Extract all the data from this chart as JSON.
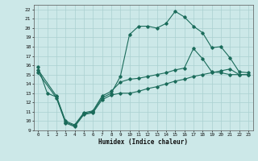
{
  "xlabel": "Humidex (Indice chaleur)",
  "bg_color": "#cce8e8",
  "line_color": "#1a6b5a",
  "grid_color": "#aad0d0",
  "xlim": [
    -0.5,
    23.5
  ],
  "ylim": [
    9,
    22.5
  ],
  "xticks": [
    0,
    1,
    2,
    3,
    4,
    5,
    6,
    7,
    8,
    9,
    10,
    11,
    12,
    13,
    14,
    15,
    16,
    17,
    18,
    19,
    20,
    21,
    22,
    23
  ],
  "yticks": [
    9,
    10,
    11,
    12,
    13,
    14,
    15,
    16,
    17,
    18,
    19,
    20,
    21,
    22
  ],
  "line1_x": [
    0,
    1,
    2,
    3,
    4,
    5,
    6,
    7,
    8,
    9,
    10,
    11,
    12,
    13,
    14,
    15,
    16,
    17,
    18,
    19,
    20,
    21,
    22,
    23
  ],
  "line1_y": [
    15.8,
    13.0,
    12.6,
    9.9,
    9.5,
    10.8,
    11.0,
    12.5,
    13.0,
    14.8,
    19.3,
    20.2,
    20.2,
    20.0,
    20.5,
    21.8,
    21.2,
    20.2,
    19.5,
    17.9,
    18.0,
    16.8,
    15.3,
    15.2
  ],
  "line2_x": [
    0,
    2,
    3,
    4,
    5,
    6,
    7,
    8,
    9,
    10,
    11,
    12,
    13,
    14,
    15,
    16,
    17,
    18,
    19,
    20,
    21,
    22,
    23
  ],
  "line2_y": [
    15.5,
    12.7,
    10.0,
    9.6,
    10.9,
    11.1,
    12.7,
    13.2,
    14.2,
    14.5,
    14.6,
    14.8,
    15.0,
    15.2,
    15.5,
    15.7,
    17.8,
    16.7,
    15.3,
    15.2,
    15.0,
    15.0,
    15.0
  ],
  "line3_x": [
    0,
    2,
    3,
    4,
    5,
    6,
    7,
    8,
    9,
    10,
    11,
    12,
    13,
    14,
    15,
    16,
    17,
    18,
    19,
    20,
    21,
    22,
    23
  ],
  "line3_y": [
    15.2,
    12.5,
    9.8,
    9.4,
    10.7,
    10.9,
    12.3,
    12.8,
    13.0,
    13.0,
    13.2,
    13.5,
    13.7,
    14.0,
    14.3,
    14.5,
    14.8,
    15.0,
    15.2,
    15.4,
    15.6,
    15.0,
    15.0
  ]
}
